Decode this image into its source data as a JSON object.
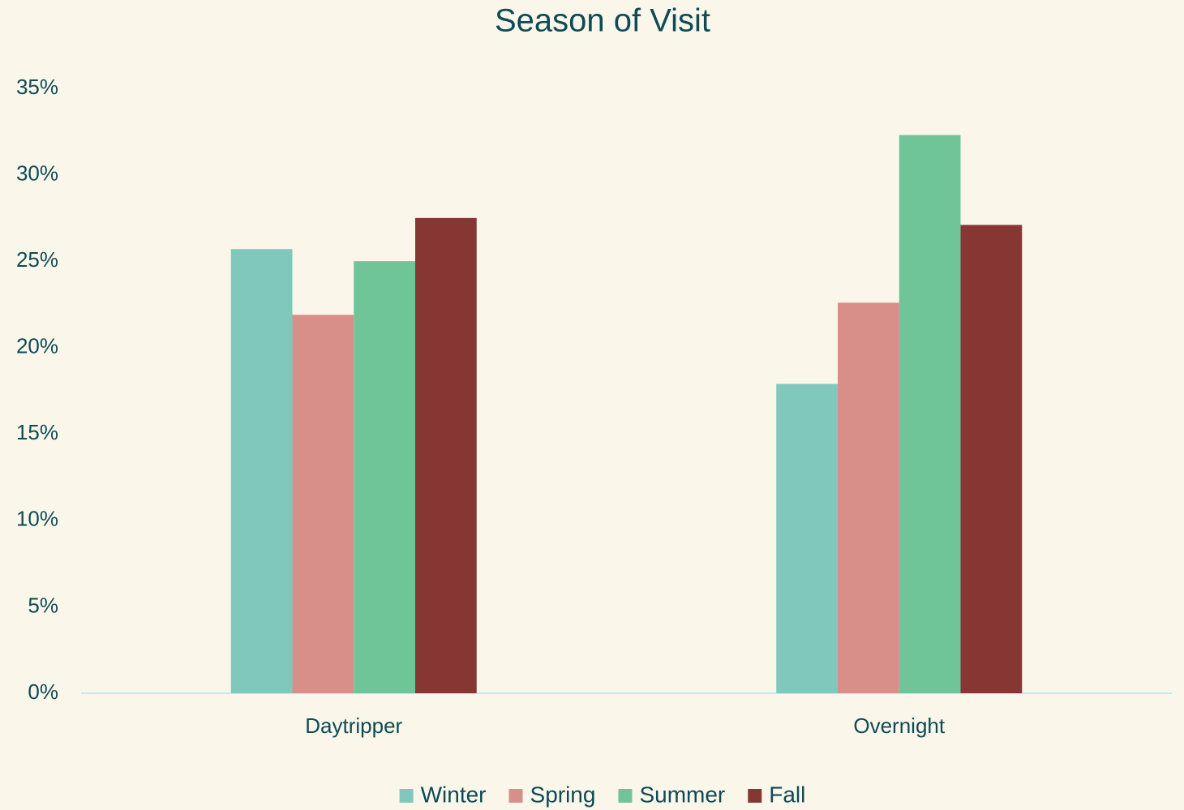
{
  "chart_data": {
    "type": "bar",
    "title": "Season of Visit",
    "categories": [
      "Daytripper",
      "Overnight"
    ],
    "series": [
      {
        "name": "Winter",
        "color": "#80c8bb",
        "values": [
          25.7,
          17.9
        ]
      },
      {
        "name": "Spring",
        "color": "#d98f89",
        "values": [
          21.9,
          22.6
        ]
      },
      {
        "name": "Summer",
        "color": "#6fc598",
        "values": [
          25.0,
          32.3
        ]
      },
      {
        "name": "Fall",
        "color": "#863733",
        "values": [
          27.5,
          27.1
        ]
      }
    ],
    "ylim": [
      0,
      35
    ],
    "yticks": [
      {
        "value": 0,
        "label": "0%"
      },
      {
        "value": 5,
        "label": "5%"
      },
      {
        "value": 10,
        "label": "10%"
      },
      {
        "value": 15,
        "label": "15%"
      },
      {
        "value": 20,
        "label": "20%"
      },
      {
        "value": 25,
        "label": "25%"
      },
      {
        "value": 30,
        "label": "30%"
      },
      {
        "value": 35,
        "label": "35%"
      }
    ],
    "grid": false,
    "legend": "bottom"
  }
}
